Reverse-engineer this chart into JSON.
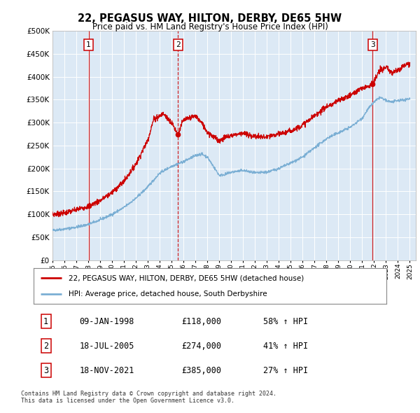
{
  "title": "22, PEGASUS WAY, HILTON, DERBY, DE65 5HW",
  "subtitle": "Price paid vs. HM Land Registry's House Price Index (HPI)",
  "ytick_values": [
    0,
    50000,
    100000,
    150000,
    200000,
    250000,
    300000,
    350000,
    400000,
    450000,
    500000
  ],
  "xlim_start": 1995.0,
  "xlim_end": 2025.5,
  "ylim_min": 0,
  "ylim_max": 500000,
  "background_color": "#ffffff",
  "plot_bg_color": "#dce9f5",
  "grid_color": "#ffffff",
  "red_line_color": "#cc0000",
  "blue_line_color": "#7bafd4",
  "vline_color": "#cc0000",
  "transactions": [
    {
      "label": 1,
      "date_num": 1998.03,
      "price": 118000,
      "date_str": "09-JAN-1998",
      "price_str": "£118,000",
      "hpi_str": "58% ↑ HPI"
    },
    {
      "label": 2,
      "date_num": 2005.54,
      "price": 274000,
      "date_str": "18-JUL-2005",
      "price_str": "£274,000",
      "hpi_str": "41% ↑ HPI"
    },
    {
      "label": 3,
      "date_num": 2021.88,
      "price": 385000,
      "date_str": "18-NOV-2021",
      "price_str": "£385,000",
      "hpi_str": "27% ↑ HPI"
    }
  ],
  "legend_line1": "22, PEGASUS WAY, HILTON, DERBY, DE65 5HW (detached house)",
  "legend_line2": "HPI: Average price, detached house, South Derbyshire",
  "footnote": "Contains HM Land Registry data © Crown copyright and database right 2024.\nThis data is licensed under the Open Government Licence v3.0.",
  "xtick_years": [
    1995,
    1996,
    1997,
    1998,
    1999,
    2000,
    2001,
    2002,
    2003,
    2004,
    2005,
    2006,
    2007,
    2008,
    2009,
    2010,
    2011,
    2012,
    2013,
    2014,
    2015,
    2016,
    2017,
    2018,
    2019,
    2020,
    2021,
    2022,
    2023,
    2024,
    2025
  ],
  "hpi_anchors_x": [
    1995.0,
    1996.0,
    1997.0,
    1998.0,
    1999.0,
    2000.0,
    2001.0,
    2002.0,
    2003.0,
    2004.0,
    2005.0,
    2006.0,
    2007.0,
    2007.5,
    2008.0,
    2009.0,
    2009.5,
    2010.0,
    2011.0,
    2012.0,
    2013.0,
    2014.0,
    2015.0,
    2016.0,
    2017.0,
    2018.0,
    2019.0,
    2020.0,
    2021.0,
    2021.5,
    2022.0,
    2022.5,
    2023.0,
    2023.5,
    2024.0,
    2025.0
  ],
  "hpi_anchors_y": [
    65000,
    68000,
    72000,
    78000,
    88000,
    100000,
    115000,
    135000,
    160000,
    190000,
    205000,
    215000,
    228000,
    232000,
    225000,
    185000,
    187000,
    192000,
    196000,
    190000,
    192000,
    200000,
    212000,
    225000,
    245000,
    265000,
    278000,
    290000,
    310000,
    330000,
    345000,
    355000,
    348000,
    345000,
    348000,
    352000
  ],
  "prop_anchors_x": [
    1995.0,
    1996.0,
    1997.0,
    1998.03,
    1999.0,
    2000.0,
    2001.0,
    2002.0,
    2003.0,
    2003.5,
    2004.0,
    2004.3,
    2005.0,
    2005.54,
    2005.8,
    2006.0,
    2006.5,
    2007.0,
    2007.5,
    2008.0,
    2008.5,
    2009.0,
    2009.5,
    2010.0,
    2010.5,
    2011.0,
    2011.5,
    2012.0,
    2013.0,
    2014.0,
    2015.0,
    2016.0,
    2017.0,
    2018.0,
    2018.5,
    2019.0,
    2020.0,
    2021.0,
    2021.88,
    2022.0,
    2022.3,
    2022.5,
    2023.0,
    2023.5,
    2024.0,
    2024.5,
    2025.0
  ],
  "prop_anchors_y": [
    100000,
    103000,
    110000,
    118000,
    130000,
    148000,
    172000,
    210000,
    262000,
    308000,
    315000,
    320000,
    300000,
    274000,
    295000,
    305000,
    310000,
    315000,
    300000,
    280000,
    270000,
    260000,
    268000,
    272000,
    275000,
    278000,
    272000,
    270000,
    268000,
    275000,
    282000,
    295000,
    315000,
    335000,
    340000,
    348000,
    360000,
    375000,
    385000,
    390000,
    405000,
    415000,
    420000,
    408000,
    415000,
    425000,
    430000
  ]
}
